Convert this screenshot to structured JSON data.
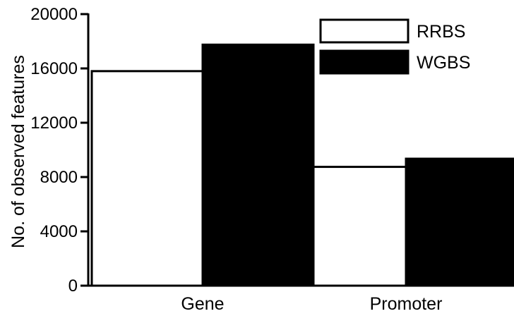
{
  "chart_data": {
    "type": "bar",
    "categories": [
      "Gene",
      "Promoter"
    ],
    "series": [
      {
        "name": "RRBS",
        "values": [
          15800,
          8750
        ],
        "fill": "#ffffff",
        "stroke": "#000000"
      },
      {
        "name": "WGBS",
        "values": [
          17750,
          9350
        ],
        "fill": "#000000",
        "stroke": "#000000"
      }
    ],
    "ylabel": "No. of observed features",
    "xlabel": "",
    "ylim": [
      0,
      20000
    ],
    "yticks": [
      0,
      4000,
      8000,
      12000,
      16000,
      20000
    ],
    "ytick_labels": [
      "0",
      "4000",
      "8000",
      "12000",
      "16000",
      "20000"
    ],
    "grid": false,
    "legend_position": "top-right"
  }
}
